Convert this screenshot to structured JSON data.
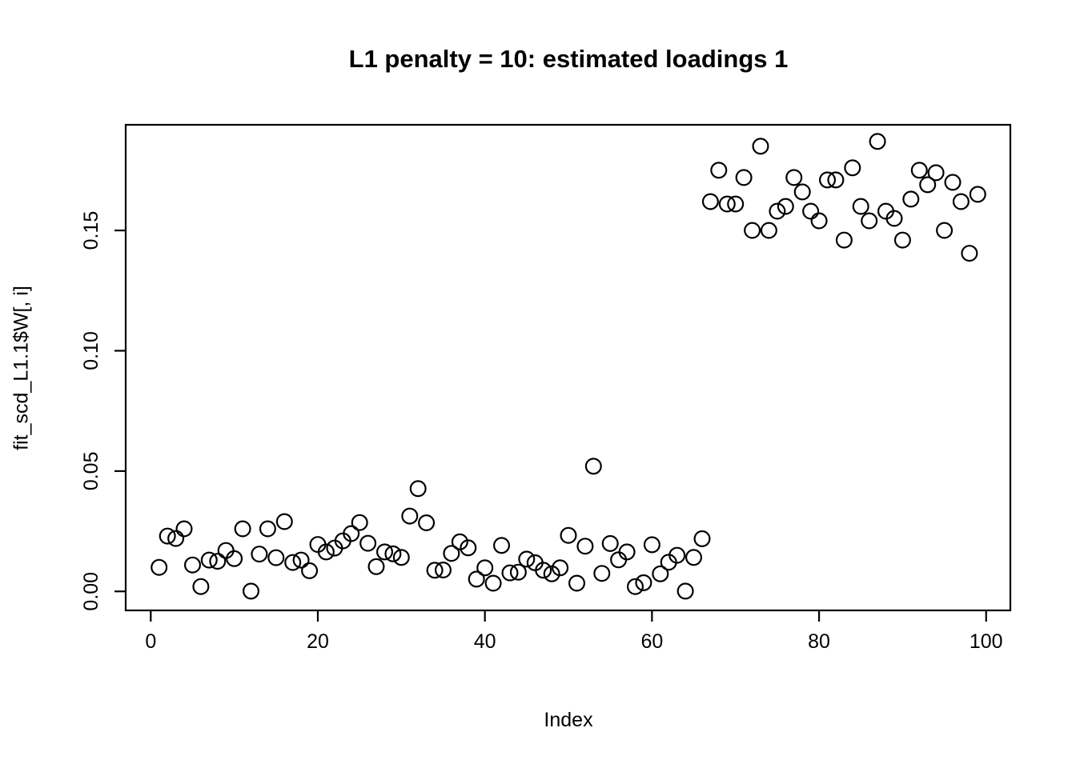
{
  "title": "L1 penalty = 10: estimated loadings 1",
  "x_axis": {
    "label": "Index",
    "tick_labels": [
      "0",
      "20",
      "40",
      "60",
      "80",
      "100"
    ]
  },
  "y_axis": {
    "label": "fit_scd_L1.1$W[, i]",
    "tick_labels": [
      "0.00",
      "0.05",
      "0.10",
      "0.15"
    ]
  },
  "colors": {
    "foreground": "#000000",
    "background": "#ffffff"
  },
  "chart_data": {
    "type": "scatter",
    "title": "L1 penalty = 10: estimated loadings 1",
    "xlabel": "Index",
    "ylabel": "fit_scd_L1.1$W[, i]",
    "marker": "open-circle",
    "grid": false,
    "legend": null,
    "xlim": [
      -3.0,
      102.9
    ],
    "ylim": [
      -0.0079,
      0.1939
    ],
    "x_ticks": [
      0,
      20,
      40,
      60,
      80,
      100
    ],
    "y_ticks": [
      0.0,
      0.05,
      0.1,
      0.15
    ],
    "x": [
      1,
      2,
      3,
      4,
      5,
      6,
      7,
      8,
      9,
      10,
      11,
      12,
      13,
      14,
      15,
      16,
      17,
      18,
      19,
      20,
      21,
      22,
      23,
      24,
      25,
      26,
      27,
      28,
      29,
      30,
      31,
      32,
      33,
      34,
      35,
      36,
      37,
      38,
      39,
      40,
      41,
      42,
      43,
      44,
      45,
      46,
      47,
      48,
      49,
      50,
      51,
      52,
      53,
      54,
      55,
      56,
      57,
      58,
      59,
      60,
      61,
      62,
      63,
      64,
      65,
      66,
      67,
      68,
      69,
      70,
      71,
      72,
      73,
      74,
      75,
      76,
      77,
      78,
      79,
      80,
      81,
      82,
      83,
      84,
      85,
      86,
      87,
      88,
      89,
      90,
      91,
      92,
      93,
      94,
      95,
      96,
      97,
      98,
      99
    ],
    "y": [
      0.01,
      0.023,
      0.022,
      0.026,
      0.011,
      0.002,
      0.013,
      0.0125,
      0.017,
      0.0136,
      0.026,
      0.0001,
      0.0155,
      0.026,
      0.014,
      0.029,
      0.012,
      0.013,
      0.0086,
      0.0195,
      0.0164,
      0.018,
      0.021,
      0.024,
      0.0286,
      0.02,
      0.0103,
      0.0164,
      0.0156,
      0.0141,
      0.0313,
      0.0427,
      0.0285,
      0.0088,
      0.0089,
      0.0158,
      0.0206,
      0.0181,
      0.0051,
      0.0098,
      0.0034,
      0.0191,
      0.0077,
      0.008,
      0.0134,
      0.0119,
      0.0088,
      0.0073,
      0.0098,
      0.0233,
      0.0034,
      0.0188,
      0.052,
      0.0075,
      0.0199,
      0.0131,
      0.0164,
      0.002,
      0.0036,
      0.0194,
      0.0073,
      0.0121,
      0.015,
      0.0001,
      0.0141,
      0.0219,
      0.162,
      0.175,
      0.161,
      0.161,
      0.172,
      0.15,
      0.185,
      0.15,
      0.158,
      0.16,
      0.172,
      0.166,
      0.158,
      0.154,
      0.171,
      0.171,
      0.146,
      0.176,
      0.16,
      0.154,
      0.187,
      0.158,
      0.155,
      0.146,
      0.163,
      0.175,
      0.169,
      0.174,
      0.15,
      0.17,
      0.162,
      0.1405,
      0.165
    ]
  }
}
